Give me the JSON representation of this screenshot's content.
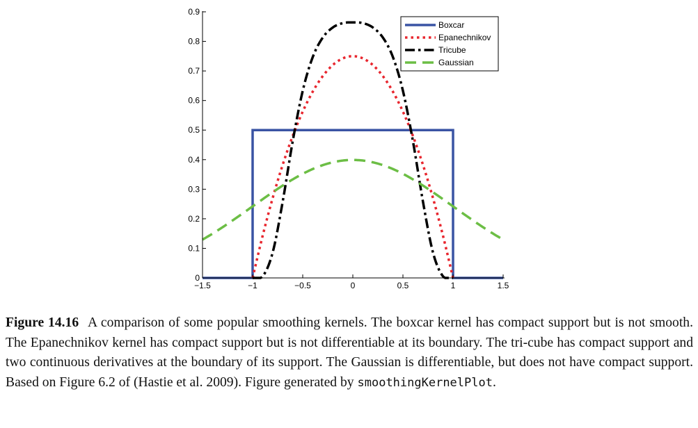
{
  "chart_data": {
    "type": "line",
    "title": "",
    "xlabel": "",
    "ylabel": "",
    "xlim": [
      -1.5,
      1.5
    ],
    "ylim": [
      0,
      0.9
    ],
    "xticks": [
      -1.5,
      -1,
      -0.5,
      0,
      0.5,
      1,
      1.5
    ],
    "xtick_labels": [
      "−1.5",
      "−1",
      "−0.5",
      "0",
      "0.5",
      "1",
      "1.5"
    ],
    "yticks": [
      0,
      0.1,
      0.2,
      0.3,
      0.4,
      0.5,
      0.6,
      0.7,
      0.8,
      0.9
    ],
    "ytick_labels": [
      "0",
      "0.1",
      "0.2",
      "0.3",
      "0.4",
      "0.5",
      "0.6",
      "0.7",
      "0.8",
      "0.9"
    ],
    "grid": false,
    "legend_position": "top-right",
    "series": [
      {
        "name": "Boxcar",
        "color": "#3a54a4",
        "style": "solid",
        "x": [
          -1.5,
          -1.0,
          -1.0,
          1.0,
          1.0,
          1.5
        ],
        "y": [
          0,
          0,
          0.5,
          0.5,
          0,
          0
        ]
      },
      {
        "name": "Epanechnikov",
        "color": "#e8262e",
        "style": "dotted",
        "x": [
          -1.0,
          -0.9,
          -0.8,
          -0.7,
          -0.6,
          -0.5,
          -0.4,
          -0.3,
          -0.2,
          -0.1,
          0.0,
          0.1,
          0.2,
          0.3,
          0.4,
          0.5,
          0.6,
          0.7,
          0.8,
          0.9,
          1.0
        ],
        "y": [
          0,
          0.1425,
          0.27,
          0.3825,
          0.48,
          0.5625,
          0.63,
          0.6825,
          0.72,
          0.7425,
          0.75,
          0.7425,
          0.72,
          0.6825,
          0.63,
          0.5625,
          0.48,
          0.3825,
          0.27,
          0.1425,
          0
        ]
      },
      {
        "name": "Tricube",
        "color": "#000000",
        "style": "dash-dot",
        "x": [
          -1.0,
          -0.9,
          -0.8,
          -0.7,
          -0.6,
          -0.5,
          -0.4,
          -0.3,
          -0.2,
          -0.1,
          0.0,
          0.1,
          0.2,
          0.3,
          0.4,
          0.5,
          0.6,
          0.7,
          0.8,
          0.9,
          1.0
        ],
        "y": [
          0,
          0.0054,
          0.0857,
          0.2577,
          0.462,
          0.6328,
          0.747,
          0.8129,
          0.847,
          0.8618,
          0.8642,
          0.8618,
          0.847,
          0.8129,
          0.747,
          0.6328,
          0.462,
          0.2577,
          0.0857,
          0.0054,
          0
        ]
      },
      {
        "name": "Gaussian",
        "color": "#6cbe45",
        "style": "dashed",
        "x": [
          -1.5,
          -1.4,
          -1.3,
          -1.2,
          -1.1,
          -1.0,
          -0.9,
          -0.8,
          -0.7,
          -0.6,
          -0.5,
          -0.4,
          -0.3,
          -0.2,
          -0.1,
          0.0,
          0.1,
          0.2,
          0.3,
          0.4,
          0.5,
          0.6,
          0.7,
          0.8,
          0.9,
          1.0,
          1.1,
          1.2,
          1.3,
          1.4,
          1.5
        ],
        "y": [
          0.1295,
          0.1497,
          0.1714,
          0.1942,
          0.2179,
          0.242,
          0.2661,
          0.2897,
          0.3123,
          0.3332,
          0.3521,
          0.3683,
          0.3814,
          0.391,
          0.397,
          0.3989,
          0.397,
          0.391,
          0.3814,
          0.3683,
          0.3521,
          0.3332,
          0.3123,
          0.2897,
          0.2661,
          0.242,
          0.2179,
          0.1942,
          0.1714,
          0.1497,
          0.1295
        ]
      }
    ]
  },
  "caption": {
    "label": "Figure 14.16",
    "text": "A comparison of some popular smoothing kernels. The boxcar kernel has compact support but is not smooth. The Epanechnikov kernel has compact support but is not differentiable at its boundary. The tri-cube has compact support and two continuous derivatives at the boundary of its support.  The Gaussian is differentiable, but does not have compact support. Based on Figure 6.2 of (Hastie et al. 2009). Figure generated by ",
    "code": "smoothingKernelPlot",
    "end": "."
  }
}
